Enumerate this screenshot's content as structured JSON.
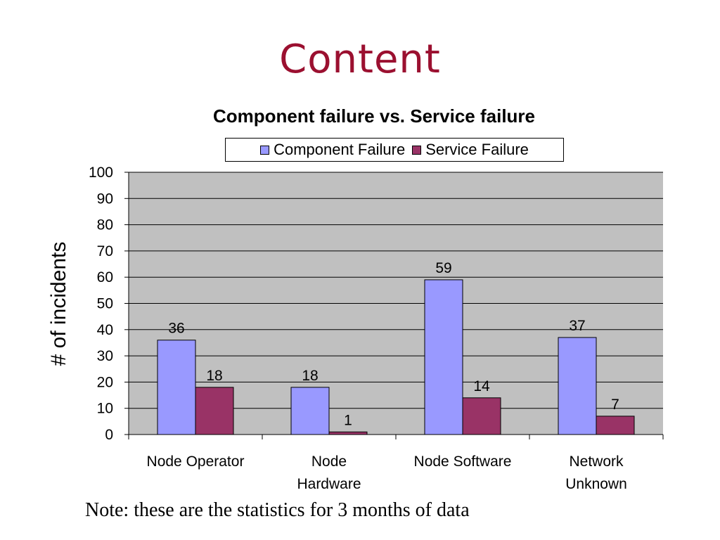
{
  "slide": {
    "title": "Content",
    "note": "Note: these are the statistics for 3 months of data"
  },
  "colors": {
    "title": "#9b1030",
    "component": "#9999ff",
    "service": "#993366",
    "plot_area": "#c0c0c0"
  },
  "chart_data": {
    "type": "bar",
    "title": "Component failure vs. Service failure",
    "ylabel": "# of incidents",
    "xlabel": "",
    "categories": [
      [
        "Node Operator"
      ],
      [
        "Node",
        "Hardware"
      ],
      [
        "Node Software"
      ],
      [
        "Network",
        "Unknown"
      ]
    ],
    "series": [
      {
        "name": "Component Failure",
        "values": [
          36,
          18,
          59,
          37
        ],
        "color": "#9999ff"
      },
      {
        "name": "Service Failure",
        "values": [
          18,
          1,
          14,
          7
        ],
        "color": "#993366"
      }
    ],
    "ylim": [
      0,
      100
    ],
    "yticks": [
      0,
      10,
      20,
      30,
      40,
      50,
      60,
      70,
      80,
      90,
      100
    ],
    "grid": true,
    "legend_position": "top",
    "data_labels": true
  }
}
